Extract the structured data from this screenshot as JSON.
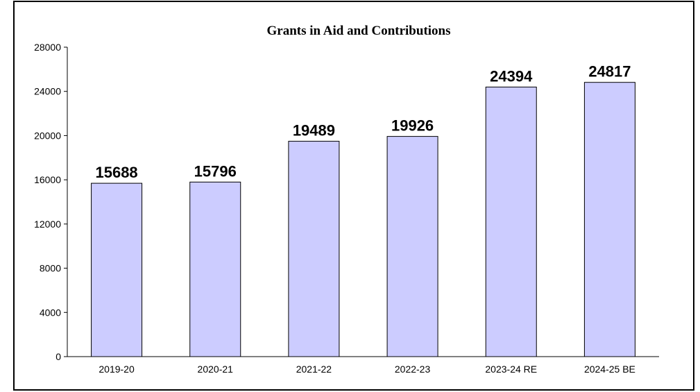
{
  "chart_data": {
    "type": "bar",
    "title": "Grants in Aid and Contributions",
    "categories": [
      "2019-20",
      "2020-21",
      "2021-22",
      "2022-23",
      "2023-24 RE",
      "2024-25 BE"
    ],
    "values": [
      15688,
      15796,
      19489,
      19926,
      24394,
      24817
    ],
    "data_labels": [
      "15688",
      "15796",
      "19489",
      "19926",
      "24394",
      "24817"
    ],
    "y_ticks": [
      "0",
      "4000",
      "8000",
      "12000",
      "16000",
      "20000",
      "24000",
      "28000"
    ],
    "ylim": [
      0,
      28000
    ],
    "xlabel": "",
    "ylabel": "",
    "grid": false,
    "legend": "none",
    "bar_color": "#ccccff",
    "bar_edge_color": "#000000"
  }
}
